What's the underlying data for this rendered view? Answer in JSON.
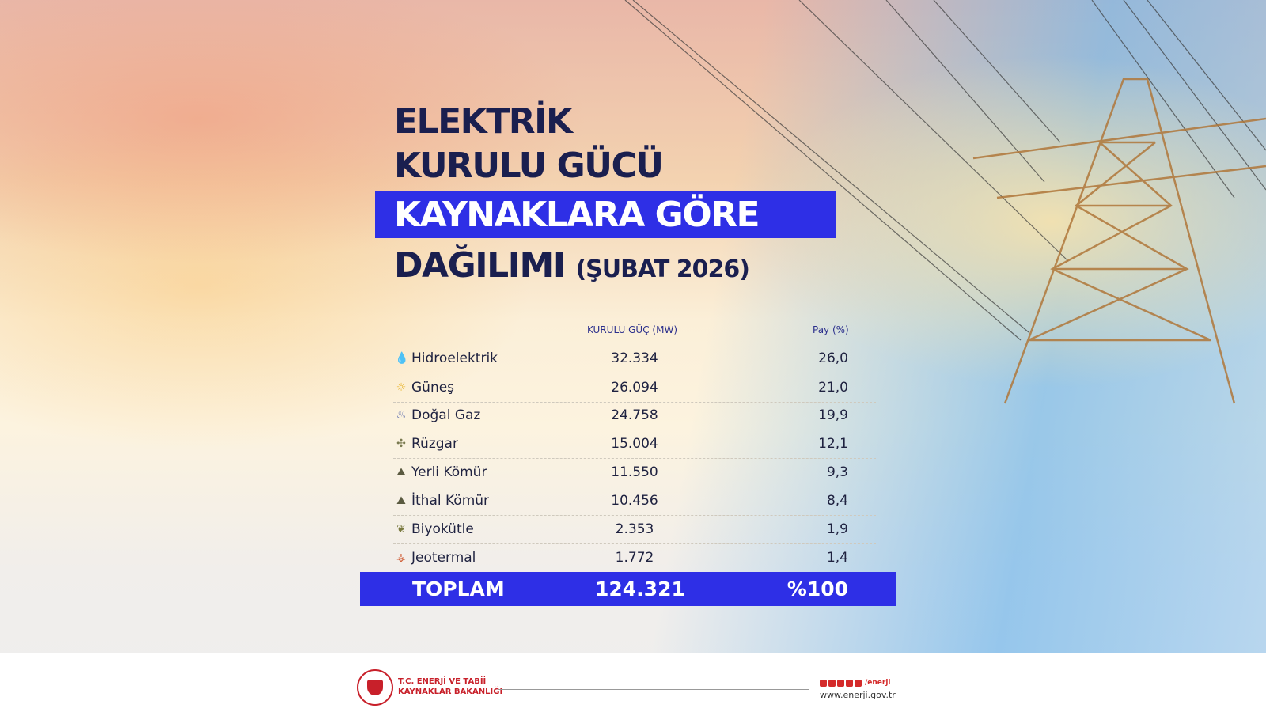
{
  "title": {
    "line1": "ELEKTRİK",
    "line2": "KURULU GÜCÜ",
    "line3": "KAYNAKLARA GÖRE",
    "line4": "DAĞILIMI",
    "period": "(ŞUBAT 2026)"
  },
  "colors": {
    "accent": "#2e2fe6",
    "title": "#1a1f4f",
    "brand_red": "#c8202a"
  },
  "table": {
    "headers": {
      "capacity": "KURULU GÜÇ (MW)",
      "share": "Pay (%)"
    },
    "rows": [
      {
        "icon": "water-drop-icon",
        "source": "Hidroelektrik",
        "mw": "32.334",
        "share": "26,0"
      },
      {
        "icon": "sun-icon",
        "source": "Güneş",
        "mw": "26.094",
        "share": "21,0"
      },
      {
        "icon": "flame-icon",
        "source": "Doğal Gaz",
        "mw": "24.758",
        "share": "19,9"
      },
      {
        "icon": "wind-turbine-icon",
        "source": "Rüzgar",
        "mw": "15.004",
        "share": "12,1"
      },
      {
        "icon": "coal-icon",
        "source": "Yerli Kömür",
        "mw": "11.550",
        "share": "9,3"
      },
      {
        "icon": "coal-icon",
        "source": "İthal Kömür",
        "mw": "10.456",
        "share": "8,4"
      },
      {
        "icon": "plant-icon",
        "source": "Biyokütle",
        "mw": "2.353",
        "share": "1,9"
      },
      {
        "icon": "geothermal-icon",
        "source": "Jeotermal",
        "mw": "1.772",
        "share": "1,4"
      }
    ],
    "total": {
      "label": "TOPLAM",
      "mw": "124.321",
      "share": "%100"
    }
  },
  "footer": {
    "ministry_line1": "T.C. ENERJİ VE TABİİ",
    "ministry_line2": "KAYNAKLAR BAKANLIĞI",
    "social_handle": "/enerji",
    "website": "www.enerji.gov.tr"
  }
}
